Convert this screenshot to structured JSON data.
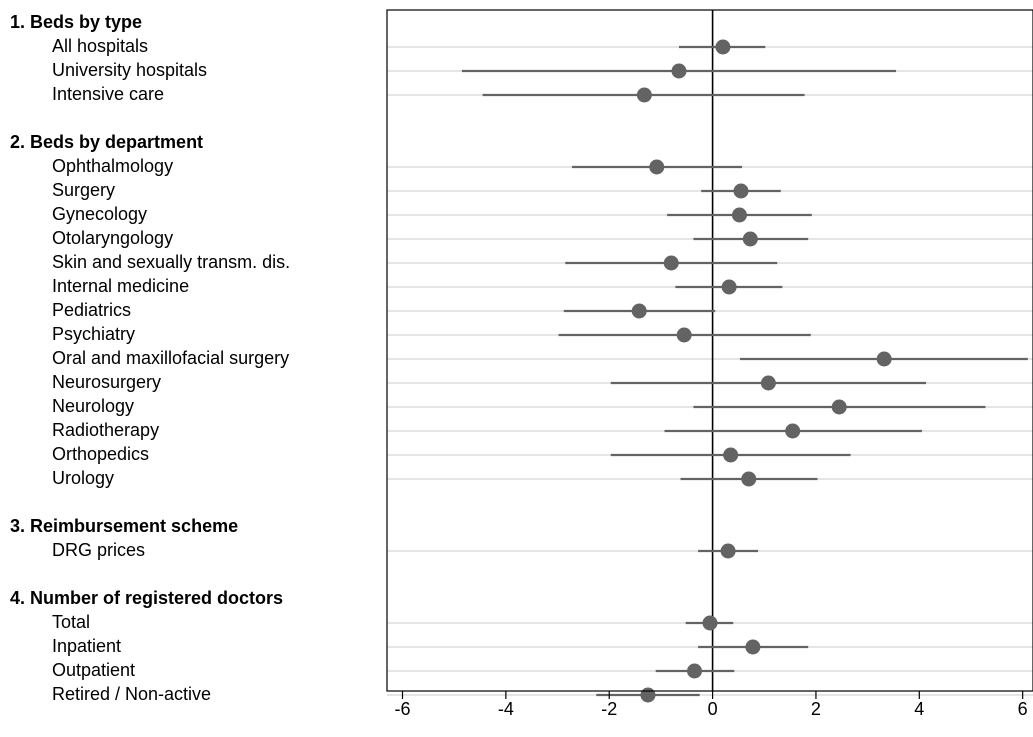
{
  "chart_data": {
    "type": "scatter",
    "subtype": "forest-plot",
    "title": "",
    "xlabel": "",
    "ylabel": "",
    "xlim": [
      -6.3,
      6.2
    ],
    "xticks": [
      -6,
      -4,
      -2,
      0,
      2,
      4,
      6
    ],
    "tick_labels": [
      "-6",
      "-4",
      "-2",
      "0",
      "2",
      "4",
      "6"
    ],
    "reference_line_x": 0,
    "grid": "horizontal light-gray line per row",
    "legend": "none",
    "colors": {
      "marker": "#636363",
      "whisker": "#636363",
      "rowline": "#e5e5e5",
      "refline": "#000000"
    },
    "groups": [
      {
        "header": "1. Beds by type",
        "rows": [
          {
            "label": "All hospitals",
            "estimate": 0.2,
            "ci": [
              -0.65,
              1.02
            ]
          },
          {
            "label": "University hospitals",
            "estimate": -0.65,
            "ci": [
              -4.85,
              3.55
            ]
          },
          {
            "label": "Intensive care",
            "estimate": -1.32,
            "ci": [
              -4.45,
              1.78
            ]
          }
        ]
      },
      {
        "header": "2. Beds by department",
        "rows": [
          {
            "label": "Ophthalmology",
            "estimate": -1.08,
            "ci": [
              -2.72,
              0.57
            ]
          },
          {
            "label": "Surgery",
            "estimate": 0.55,
            "ci": [
              -0.22,
              1.32
            ]
          },
          {
            "label": "Gynecology",
            "estimate": 0.52,
            "ci": [
              -0.88,
              1.92
            ]
          },
          {
            "label": "Otolaryngology",
            "estimate": 0.73,
            "ci": [
              -0.37,
              1.85
            ]
          },
          {
            "label": "Skin and sexually transm. dis.",
            "estimate": -0.8,
            "ci": [
              -2.85,
              1.25
            ]
          },
          {
            "label": "Internal medicine",
            "estimate": 0.32,
            "ci": [
              -0.72,
              1.35
            ]
          },
          {
            "label": "Pediatrics",
            "estimate": -1.42,
            "ci": [
              -2.88,
              0.05
            ]
          },
          {
            "label": "Psychiatry",
            "estimate": -0.55,
            "ci": [
              -2.98,
              1.9
            ]
          },
          {
            "label": "Oral and maxillofacial surgery",
            "estimate": 3.32,
            "ci": [
              0.53,
              6.1
            ]
          },
          {
            "label": "Neurosurgery",
            "estimate": 1.08,
            "ci": [
              -1.97,
              4.13
            ]
          },
          {
            "label": "Neurology",
            "estimate": 2.45,
            "ci": [
              -0.37,
              5.28
            ]
          },
          {
            "label": "Radiotherapy",
            "estimate": 1.55,
            "ci": [
              -0.93,
              4.05
            ]
          },
          {
            "label": "Orthopedics",
            "estimate": 0.35,
            "ci": [
              -1.97,
              2.67
            ]
          },
          {
            "label": "Urology",
            "estimate": 0.7,
            "ci": [
              -0.62,
              2.03
            ]
          }
        ]
      },
      {
        "header": "3. Reimbursement scheme",
        "rows": [
          {
            "label": "DRG prices",
            "estimate": 0.3,
            "ci": [
              -0.28,
              0.88
            ]
          }
        ]
      },
      {
        "header": "4. Number of registered doctors",
        "rows": [
          {
            "label": "Total",
            "estimate": -0.05,
            "ci": [
              -0.52,
              0.4
            ]
          },
          {
            "label": "Inpatient",
            "estimate": 0.78,
            "ci": [
              -0.28,
              1.85
            ]
          },
          {
            "label": "Outpatient",
            "estimate": -0.35,
            "ci": [
              -1.1,
              0.42
            ]
          },
          {
            "label": "Retired / Non-active",
            "estimate": -1.25,
            "ci": [
              -2.25,
              -0.25
            ]
          }
        ]
      }
    ]
  }
}
